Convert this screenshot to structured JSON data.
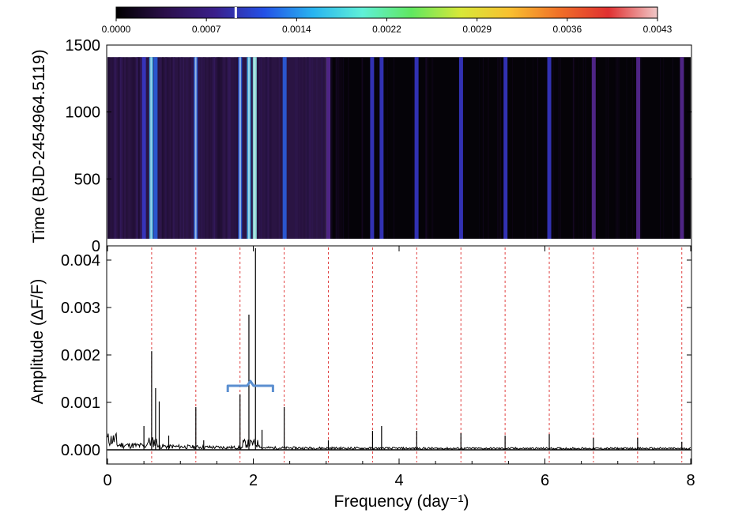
{
  "colorbar": {
    "tick_labels": [
      "0.0000",
      "0.0007",
      "0.0014",
      "0.0022",
      "0.0029",
      "0.0036",
      "0.0043"
    ],
    "range": [
      0.0,
      0.0043
    ],
    "marker_value": 0.00095,
    "colors": [
      "#000000",
      "#2b0f4a",
      "#3a1f8a",
      "#2450e6",
      "#28b4f0",
      "#5ff0d8",
      "#60e860",
      "#d8e838",
      "#f8c030",
      "#f07028",
      "#e03030",
      "#f0c8c8"
    ]
  },
  "chart_data": [
    {
      "type": "heatmap",
      "title": "",
      "xlabel": "",
      "ylabel": "Time (BJD-2454964.5119)",
      "xlim": [
        0,
        8
      ],
      "ylim": [
        0,
        1500
      ],
      "data_extent_y": [
        0,
        1410
      ],
      "ytick_labels": [
        "0",
        "500",
        "1000",
        "1500"
      ],
      "ytick_values": [
        0,
        500,
        1000,
        1500
      ],
      "ridges": [
        {
          "freq": 0.5,
          "level": 0.42
        },
        {
          "freq": 0.6,
          "level": 0.7
        },
        {
          "freq": 0.66,
          "level": 0.55
        },
        {
          "freq": 1.21,
          "level": 0.58
        },
        {
          "freq": 1.82,
          "level": 0.56
        },
        {
          "freq": 1.94,
          "level": 0.72
        },
        {
          "freq": 2.02,
          "level": 0.82
        },
        {
          "freq": 2.43,
          "level": 0.5
        },
        {
          "freq": 3.03,
          "level": 0.3
        },
        {
          "freq": 3.63,
          "level": 0.42
        },
        {
          "freq": 3.76,
          "level": 0.4
        },
        {
          "freq": 4.24,
          "level": 0.38
        },
        {
          "freq": 4.85,
          "level": 0.4
        },
        {
          "freq": 5.46,
          "level": 0.36
        },
        {
          "freq": 6.06,
          "level": 0.38
        },
        {
          "freq": 6.67,
          "level": 0.34
        },
        {
          "freq": 7.28,
          "level": 0.34
        },
        {
          "freq": 7.88,
          "level": 0.3
        }
      ]
    },
    {
      "type": "line",
      "title": "",
      "xlabel": "Frequency (day⁻¹)",
      "ylabel": "Amplitude (ΔF/F)",
      "xlim": [
        0,
        8
      ],
      "ylim": [
        -0.0003,
        0.0043
      ],
      "xtick_labels": [
        "0",
        "2",
        "4",
        "6",
        "8"
      ],
      "xtick_values": [
        0,
        2,
        4,
        6,
        8
      ],
      "ytick_labels": [
        "0.000",
        "0.001",
        "0.002",
        "0.003",
        "0.004"
      ],
      "ytick_values": [
        0.0,
        0.001,
        0.002,
        0.003,
        0.004
      ],
      "harmonic_lines": [
        0.606,
        1.212,
        1.818,
        2.424,
        3.03,
        3.636,
        4.242,
        4.848,
        5.454,
        6.06,
        6.666,
        7.272,
        7.878
      ],
      "harmonic_line_color": "#e04040",
      "peaks": [
        {
          "freq": 0.5,
          "amp": 0.0005
        },
        {
          "freq": 0.606,
          "amp": 0.00208
        },
        {
          "freq": 0.66,
          "amp": 0.0013
        },
        {
          "freq": 0.71,
          "amp": 0.00102
        },
        {
          "freq": 0.84,
          "amp": 0.0003
        },
        {
          "freq": 1.212,
          "amp": 0.0009
        },
        {
          "freq": 1.32,
          "amp": 0.0002
        },
        {
          "freq": 1.818,
          "amp": 0.00117
        },
        {
          "freq": 1.94,
          "amp": 0.00285
        },
        {
          "freq": 2.03,
          "amp": 0.00425
        },
        {
          "freq": 2.12,
          "amp": 0.00042
        },
        {
          "freq": 2.424,
          "amp": 0.0009
        },
        {
          "freq": 3.03,
          "amp": 0.0002
        },
        {
          "freq": 3.636,
          "amp": 0.0004
        },
        {
          "freq": 3.76,
          "amp": 0.0005
        },
        {
          "freq": 4.242,
          "amp": 0.0004
        },
        {
          "freq": 4.848,
          "amp": 0.00035
        },
        {
          "freq": 5.454,
          "amp": 0.0003
        },
        {
          "freq": 6.06,
          "amp": 0.00033
        },
        {
          "freq": 6.666,
          "amp": 0.00025
        },
        {
          "freq": 7.272,
          "amp": 0.00025
        },
        {
          "freq": 7.878,
          "amp": 0.00017
        }
      ],
      "bracket": {
        "freq_start": 1.65,
        "freq_end": 2.27,
        "amp": 0.00135,
        "color": "#5b8fd0"
      }
    }
  ]
}
